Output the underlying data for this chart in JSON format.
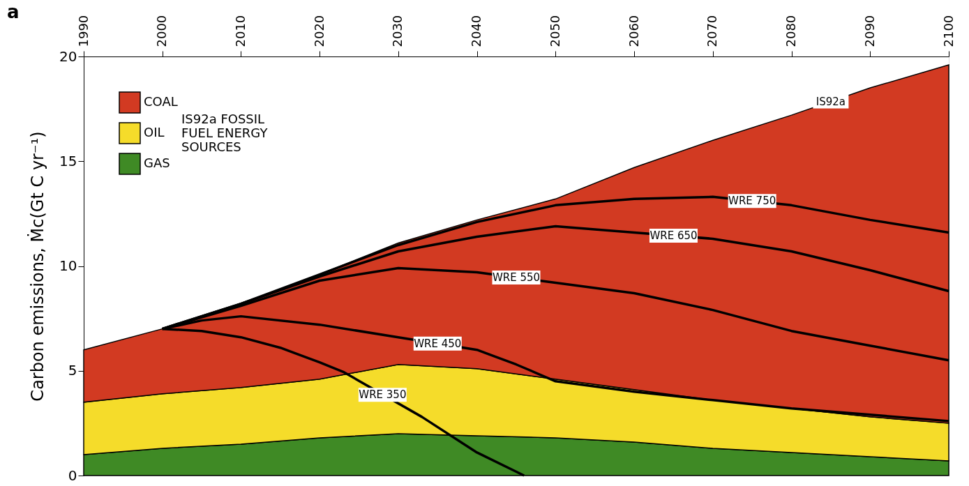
{
  "chart_data": {
    "type": "area",
    "title": "a",
    "ylabel": "Carbon emissions, Ṁc(Gt C yr⁻¹)",
    "legend_title": "IS92a FOSSIL\nFUEL ENERGY\nSOURCES",
    "legend": "top left",
    "stacked": true,
    "grid": false,
    "x": [
      1990,
      2000,
      2010,
      2020,
      2030,
      2040,
      2050,
      2060,
      2070,
      2080,
      2090,
      2100
    ],
    "xlim": [
      1990,
      2100
    ],
    "xticks": [
      1990,
      2000,
      2010,
      2020,
      2030,
      2040,
      2050,
      2060,
      2070,
      2080,
      2090,
      2100
    ],
    "ylim": [
      0,
      20
    ],
    "yticks": [
      0,
      5,
      10,
      15,
      20
    ],
    "series": [
      {
        "name": "GAS",
        "color": "#3f8a25",
        "values": [
          1.0,
          1.3,
          1.5,
          1.8,
          2.0,
          1.9,
          1.8,
          1.6,
          1.3,
          1.1,
          0.9,
          0.7
        ]
      },
      {
        "name": "OIL",
        "color": "#f5dc2a",
        "values": [
          2.5,
          2.6,
          2.7,
          2.8,
          3.3,
          3.2,
          2.8,
          2.5,
          2.3,
          2.1,
          1.9,
          1.8
        ]
      },
      {
        "name": "COAL",
        "color": "#d23a22",
        "values": [
          2.5,
          3.1,
          4.0,
          5.0,
          5.8,
          7.1,
          8.6,
          10.6,
          12.4,
          14.0,
          15.7,
          17.1
        ]
      },
      {
        "type": "line",
        "color": "#000000",
        "x": [
          2000,
          2005,
          2010,
          2015,
          2020,
          2023,
          2033,
          2040,
          2046
        ],
        "values": [
          7.0,
          6.9,
          6.6,
          6.1,
          5.4,
          4.95,
          2.8,
          1.1,
          0
        ]
      },
      {
        "type": "line",
        "color": "#000000",
        "x": [
          2000,
          2005,
          2010,
          2020,
          2030,
          2040,
          2045,
          2050,
          2060,
          2070,
          2080,
          2090,
          2100
        ],
        "values": [
          7.0,
          7.4,
          7.6,
          7.2,
          6.6,
          6.0,
          5.3,
          4.5,
          4.0,
          3.6,
          3.2,
          2.9,
          2.6
        ]
      },
      {
        "type": "line",
        "color": "#000000",
        "x": [
          2000,
          2010,
          2020,
          2030,
          2040,
          2050,
          2060,
          2070,
          2080,
          2090,
          2100
        ],
        "values": [
          7.0,
          8.1,
          9.3,
          9.9,
          9.7,
          9.2,
          8.7,
          7.9,
          6.9,
          6.2,
          5.5
        ]
      },
      {
        "type": "line",
        "color": "#000000",
        "x": [
          2000,
          2010,
          2020,
          2030,
          2040,
          2050,
          2060,
          2070,
          2080,
          2090,
          2100
        ],
        "values": [
          7.0,
          8.2,
          9.5,
          10.7,
          11.4,
          11.9,
          11.6,
          11.3,
          10.7,
          9.8,
          8.8
        ]
      },
      {
        "type": "line",
        "color": "#000000",
        "x": [
          2000,
          2010,
          2020,
          2030,
          2040,
          2050,
          2060,
          2070,
          2080,
          2090,
          2100
        ],
        "values": [
          7.0,
          8.2,
          9.6,
          11.0,
          12.1,
          12.9,
          13.2,
          13.3,
          12.9,
          12.2,
          11.6
        ]
      }
    ],
    "annotations": [
      {
        "text": "IS92a",
        "x": 2085,
        "y": 17.85
      },
      {
        "text": "WRE 750",
        "x": 2075,
        "y": 13.1
      },
      {
        "text": "WRE 650",
        "x": 2065,
        "y": 11.45
      },
      {
        "text": "WRE 550",
        "x": 2045,
        "y": 9.45
      },
      {
        "text": "WRE 450",
        "x": 2035,
        "y": 6.3
      },
      {
        "text": "WRE 350",
        "x": 2028,
        "y": 3.85
      }
    ]
  }
}
